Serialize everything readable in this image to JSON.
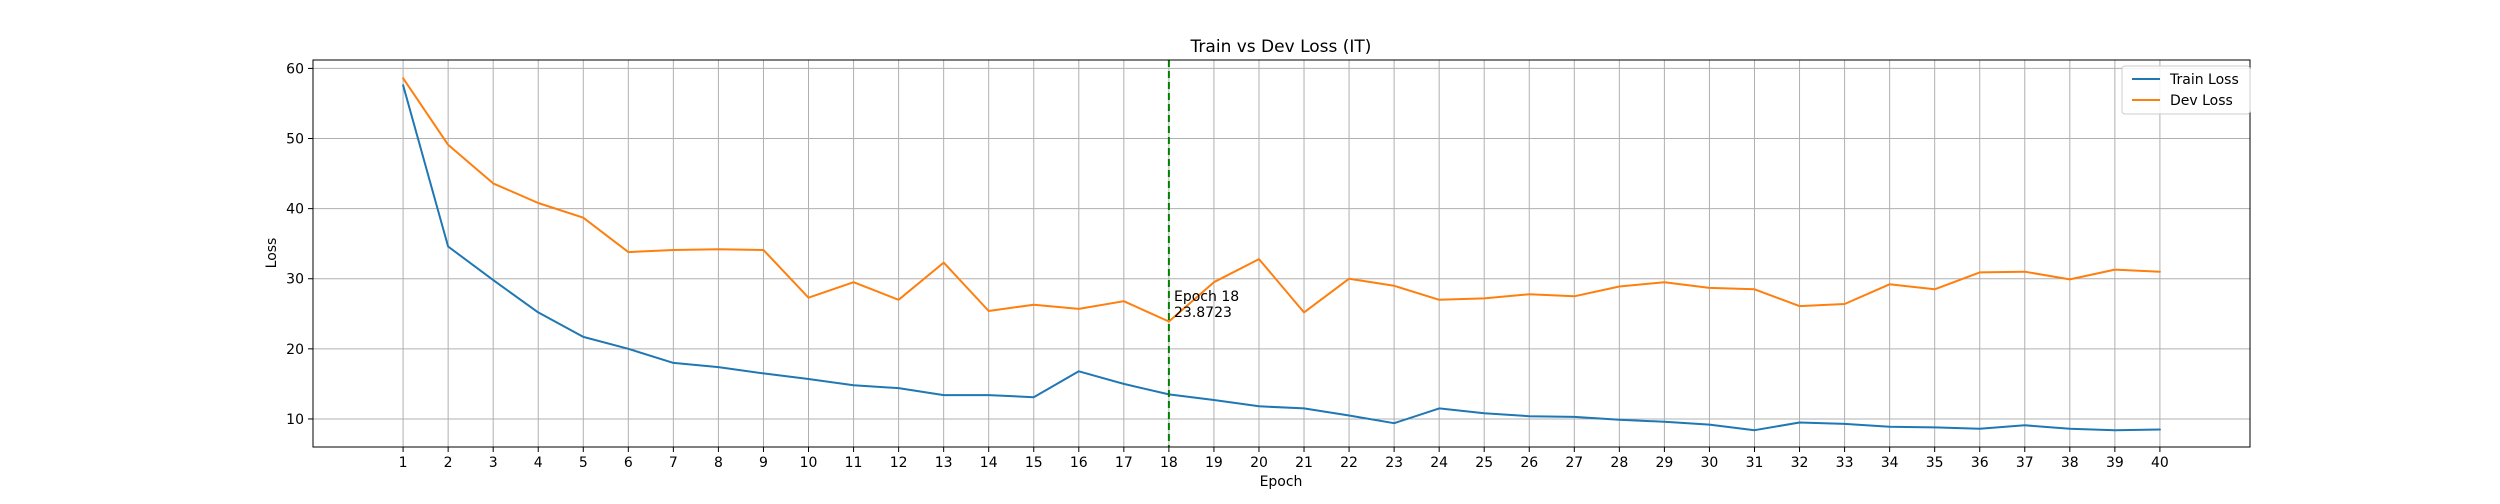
{
  "chart_data": {
    "type": "line",
    "title": "Train vs Dev Loss (IT)",
    "xlabel": "Epoch",
    "ylabel": "Loss",
    "x": [
      1,
      2,
      3,
      4,
      5,
      6,
      7,
      8,
      9,
      10,
      11,
      12,
      13,
      14,
      15,
      16,
      17,
      18,
      19,
      20,
      21,
      22,
      23,
      24,
      25,
      26,
      27,
      28,
      29,
      30,
      31,
      32,
      33,
      34,
      35,
      36,
      37,
      38,
      39,
      40
    ],
    "xlim": [
      -1,
      42
    ],
    "ylim": [
      6,
      61.2
    ],
    "yticks": [
      10,
      20,
      30,
      40,
      50,
      60
    ],
    "grid": true,
    "legend_position": "top-right",
    "colors": {
      "train": "#1f77b4",
      "dev": "#ff7f0e",
      "marker": "#008000",
      "grid": "#b0b0b0"
    },
    "series": [
      {
        "name": "Train Loss",
        "color": "#1f77b4",
        "values": [
          57.6,
          34.6,
          29.8,
          25.2,
          21.7,
          20.0,
          18.0,
          17.4,
          16.5,
          15.7,
          14.8,
          14.4,
          13.4,
          13.4,
          13.1,
          16.8,
          15.0,
          13.5,
          12.7,
          11.8,
          11.5,
          10.5,
          9.4,
          11.5,
          10.8,
          10.4,
          10.3,
          9.9,
          9.6,
          9.2,
          8.4,
          9.5,
          9.3,
          8.9,
          8.8,
          8.6,
          9.1,
          8.6,
          8.4,
          8.5
        ]
      },
      {
        "name": "Dev Loss",
        "color": "#ff7f0e",
        "values": [
          58.6,
          49.1,
          43.6,
          40.8,
          38.7,
          33.8,
          34.1,
          34.2,
          34.1,
          27.3,
          29.5,
          27.0,
          32.3,
          25.4,
          26.3,
          25.7,
          26.8,
          23.9,
          29.5,
          32.8,
          25.2,
          30.0,
          29.0,
          27.0,
          27.2,
          27.8,
          27.5,
          28.9,
          29.5,
          28.7,
          28.5,
          26.1,
          26.4,
          29.2,
          28.5,
          30.9,
          31.0,
          29.9,
          31.3,
          31.0
        ]
      }
    ],
    "annotation": {
      "x": 18,
      "y": 23.8723,
      "line1": "Epoch 18",
      "line2": "23.8723"
    }
  }
}
